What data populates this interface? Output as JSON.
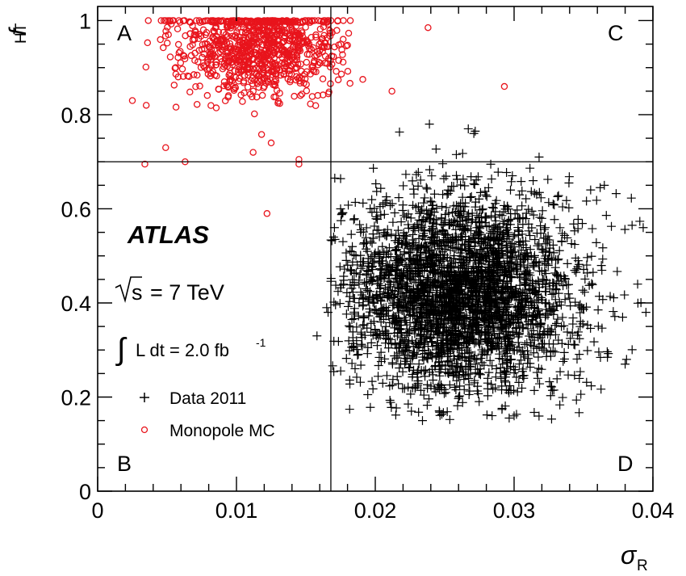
{
  "chart_data": {
    "type": "scatter",
    "title": "",
    "xlabel": "σ",
    "xlabel_sub": "R",
    "ylabel": "f",
    "ylabel_sub": "HT",
    "xlim": [
      0,
      0.04
    ],
    "ylim": [
      0,
      1.03
    ],
    "x_ticks": [
      {
        "value": 0,
        "label": "0"
      },
      {
        "value": 0.01,
        "label": "0.01"
      },
      {
        "value": 0.02,
        "label": "0.02"
      },
      {
        "value": 0.03,
        "label": "0.03"
      },
      {
        "value": 0.04,
        "label": "0.04"
      }
    ],
    "y_ticks": [
      {
        "value": 0,
        "label": "0"
      },
      {
        "value": 0.2,
        "label": "0.2"
      },
      {
        "value": 0.4,
        "label": "0.4"
      },
      {
        "value": 0.6,
        "label": "0.6"
      },
      {
        "value": 0.8,
        "label": "0.8"
      },
      {
        "value": 1.0,
        "label": "1"
      }
    ],
    "cut_lines": {
      "x": 0.0168,
      "y": 0.7
    },
    "regions": [
      {
        "label": "A",
        "position": "top-left"
      },
      {
        "label": "B",
        "position": "bottom-left"
      },
      {
        "label": "C",
        "position": "top-right"
      },
      {
        "label": "D",
        "position": "bottom-right"
      }
    ],
    "annotations": {
      "experiment": "ATLAS",
      "energy_sqrt": "s",
      "energy_value": "= 7 TeV",
      "lumi_integral": "∫",
      "lumi_text": "L dt = 2.0 fb",
      "lumi_exp": "-1"
    },
    "legend": {
      "position": "left-middle"
    },
    "series": [
      {
        "name": "Data 2011",
        "marker": "plus",
        "color": "#000000",
        "distribution": {
          "count": 3200,
          "x_center": 0.0262,
          "x_std": 0.0042,
          "y_center": 0.42,
          "y_std": 0.105,
          "y_min": 0.15,
          "y_max": 0.78,
          "x_min": 0.0168,
          "x_max": 0.0395
        },
        "points": [
          [
            0.0239,
            0.78
          ],
          [
            0.0272,
            0.765
          ],
          [
            0.0271,
            0.76
          ],
          [
            0.0267,
            0.77
          ],
          [
            0.0318,
            0.71
          ],
          [
            0.0385,
            0.565
          ],
          [
            0.0393,
            0.56
          ],
          [
            0.0158,
            0.33
          ],
          [
            0.0165,
            0.39
          ],
          [
            0.0166,
            0.38
          ],
          [
            0.017,
            0.54
          ],
          [
            0.0171,
            0.535
          ],
          [
            0.0234,
            0.15
          ],
          [
            0.03,
            0.16
          ],
          [
            0.0226,
            0.17
          ],
          [
            0.038,
            0.27
          ],
          [
            0.0381,
            0.28
          ],
          [
            0.0395,
            0.38
          ],
          [
            0.0365,
            0.65
          ],
          [
            0.0362,
            0.645
          ],
          [
            0.0175,
            0.6
          ],
          [
            0.0176,
            0.59
          ],
          [
            0.0177,
            0.44
          ],
          [
            0.0389,
            0.44
          ]
        ]
      },
      {
        "name": "Monopole MC",
        "marker": "open-circle",
        "color": "#e8141c",
        "distribution": {
          "count": 900,
          "x_center": 0.0115,
          "x_std": 0.0028,
          "y_center": 0.94,
          "y_std": 0.05,
          "y_min": 0.7,
          "y_max": 1.0,
          "x_min": 0.0025,
          "x_max": 0.0182
        },
        "points": [
          [
            0.0238,
            0.985
          ],
          [
            0.0293,
            0.86
          ],
          [
            0.0212,
            0.85
          ],
          [
            0.0191,
            0.875
          ],
          [
            0.0122,
            0.59
          ],
          [
            0.0034,
            0.695
          ],
          [
            0.0063,
            0.7
          ],
          [
            0.0145,
            0.695
          ],
          [
            0.0035,
            0.82
          ],
          [
            0.0049,
            0.73
          ],
          [
            0.0173,
            1.0
          ],
          [
            0.0177,
            1.0
          ],
          [
            0.0182,
            1.0
          ],
          [
            0.0168,
            1.0
          ],
          [
            0.0163,
            1.0
          ],
          [
            0.0125,
            0.74
          ],
          [
            0.0112,
            0.72
          ],
          [
            0.0025,
            0.83
          ],
          [
            0.0145,
            0.705
          ]
        ]
      }
    ]
  }
}
